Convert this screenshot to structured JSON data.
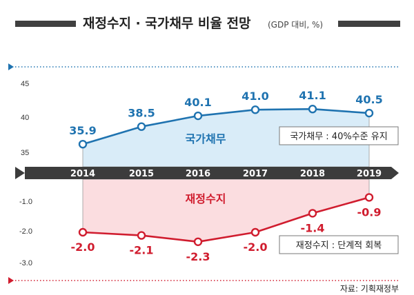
{
  "chart_data": {
    "type": "line",
    "title": "재정수지 · 국가채무 비율 전망",
    "subtitle": "(GDP 대비, %)",
    "categories": [
      "2014",
      "2015",
      "2016",
      "2017",
      "2018",
      "2019"
    ],
    "upper": {
      "name": "국가채무",
      "values": [
        35.9,
        38.5,
        40.1,
        41.0,
        41.1,
        40.5
      ],
      "labels": [
        "35.9",
        "38.5",
        "40.1",
        "41.0",
        "41.1",
        "40.5"
      ],
      "ylim": [
        33,
        46
      ],
      "ticks": [
        "45",
        "40",
        "35"
      ],
      "color": "#1f73b0",
      "fill": "#d9ecf8"
    },
    "lower": {
      "name": "재정수지",
      "values": [
        -2.0,
        -2.1,
        -2.3,
        -2.0,
        -1.4,
        -0.9
      ],
      "labels": [
        "-2.0",
        "-2.1",
        "-2.3",
        "-2.0",
        "-1.4",
        "-0.9"
      ],
      "ylim": [
        -3.0,
        -0.4
      ],
      "ticks": [
        "-1.0",
        "-2.0",
        "-3.0"
      ],
      "color": "#d01c2e",
      "fill": "#fbdde0"
    },
    "annotations": [
      "국가채무 : 40%수준 유지",
      "재정수지 : 단계적 회복"
    ],
    "source": "자료: 기획재정부",
    "axis_color": "#3c3c3c",
    "accent_color": "#1f73b0",
    "bottom_rule_color": "#d01c2e"
  }
}
